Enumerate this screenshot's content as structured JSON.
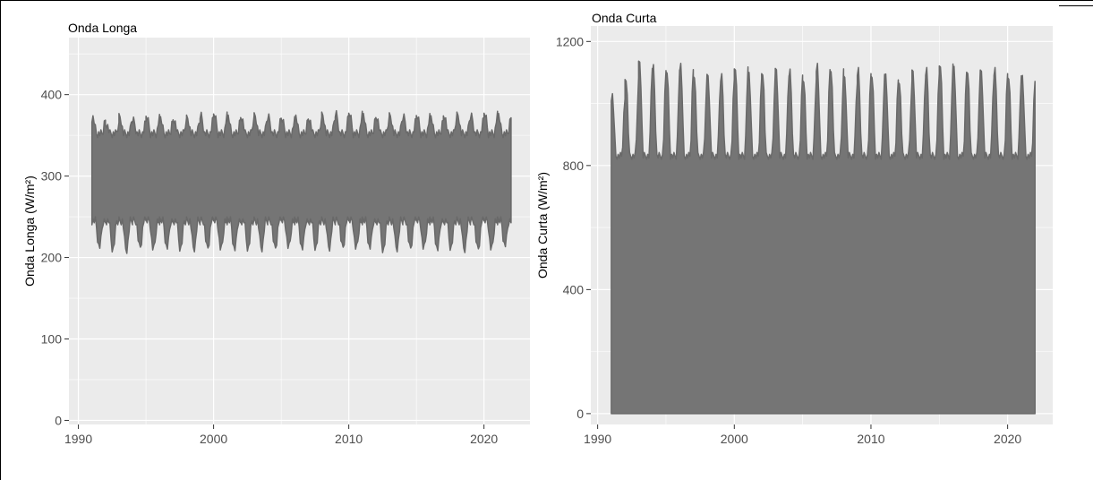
{
  "chart_data": [
    {
      "type": "line",
      "title": "Onda Longa",
      "xlabel": "",
      "ylabel": "Onda Longa (W/m²)",
      "xlim": [
        1989.3,
        2023.4
      ],
      "ylim": [
        -5,
        470
      ],
      "x_ticks": [
        1990,
        2000,
        2010,
        2020
      ],
      "x_tick_labels": [
        "1990",
        "2000",
        "2010",
        "2020"
      ],
      "y_ticks": [
        0,
        100,
        200,
        300,
        400
      ],
      "y_tick_labels": [
        "0",
        "100",
        "200",
        "300",
        "400"
      ],
      "grid": true,
      "legend": "none",
      "series": [
        {
          "x_start": 1991.0,
          "x_end": 2022.0,
          "seasonal_max": [
            372,
            364,
            373,
            368,
            372,
            371,
            370,
            371,
            374,
            375,
            373,
            373,
            374,
            372,
            369,
            373,
            371,
            375,
            376,
            376,
            375,
            373,
            374,
            372,
            373,
            372,
            375,
            375,
            373,
            376,
            375
          ],
          "seasonal_min": [
            213,
            210,
            209,
            212,
            210,
            212,
            211,
            211,
            211,
            210,
            210,
            211,
            211,
            211,
            212,
            211,
            212,
            212,
            212,
            211,
            212,
            209,
            211,
            211,
            211,
            210,
            212,
            210,
            210,
            210,
            215
          ],
          "band_upper": 352,
          "band_lower": 245
        }
      ]
    },
    {
      "type": "line",
      "title": "Onda Curta",
      "xlabel": "",
      "ylabel": "Onda Curta (W/m²)",
      "xlim": [
        1989.5,
        2023.3
      ],
      "ylim": [
        -35,
        1250
      ],
      "x_ticks": [
        1990,
        2000,
        2010,
        2020
      ],
      "x_tick_labels": [
        "1990",
        "2000",
        "2010",
        "2020"
      ],
      "y_ticks": [
        0,
        400,
        800,
        1200
      ],
      "y_tick_labels": [
        "0",
        "400",
        "800",
        "1200"
      ],
      "grid": true,
      "legend": "none",
      "series": [
        {
          "x_start": 1991.0,
          "x_end": 2022.0,
          "daily_min": 0,
          "seasonal_max": [
            1030,
            1090,
            1140,
            1120,
            1110,
            1130,
            1100,
            1095,
            1090,
            1120,
            1100,
            1110,
            1115,
            1105,
            1080,
            1130,
            1120,
            1090,
            1110,
            1095,
            1095,
            1080,
            1110,
            1110,
            1130,
            1120,
            1115,
            1110,
            1110,
            1090,
            1090
          ],
          "seasonal_trough": 830
        }
      ]
    }
  ],
  "colors": {
    "panel_background": "#ebebeb",
    "grid_line": "#ffffff",
    "series_fill": "#757575",
    "series_stroke": "#696969",
    "tick_label": "#4d4d4d"
  }
}
